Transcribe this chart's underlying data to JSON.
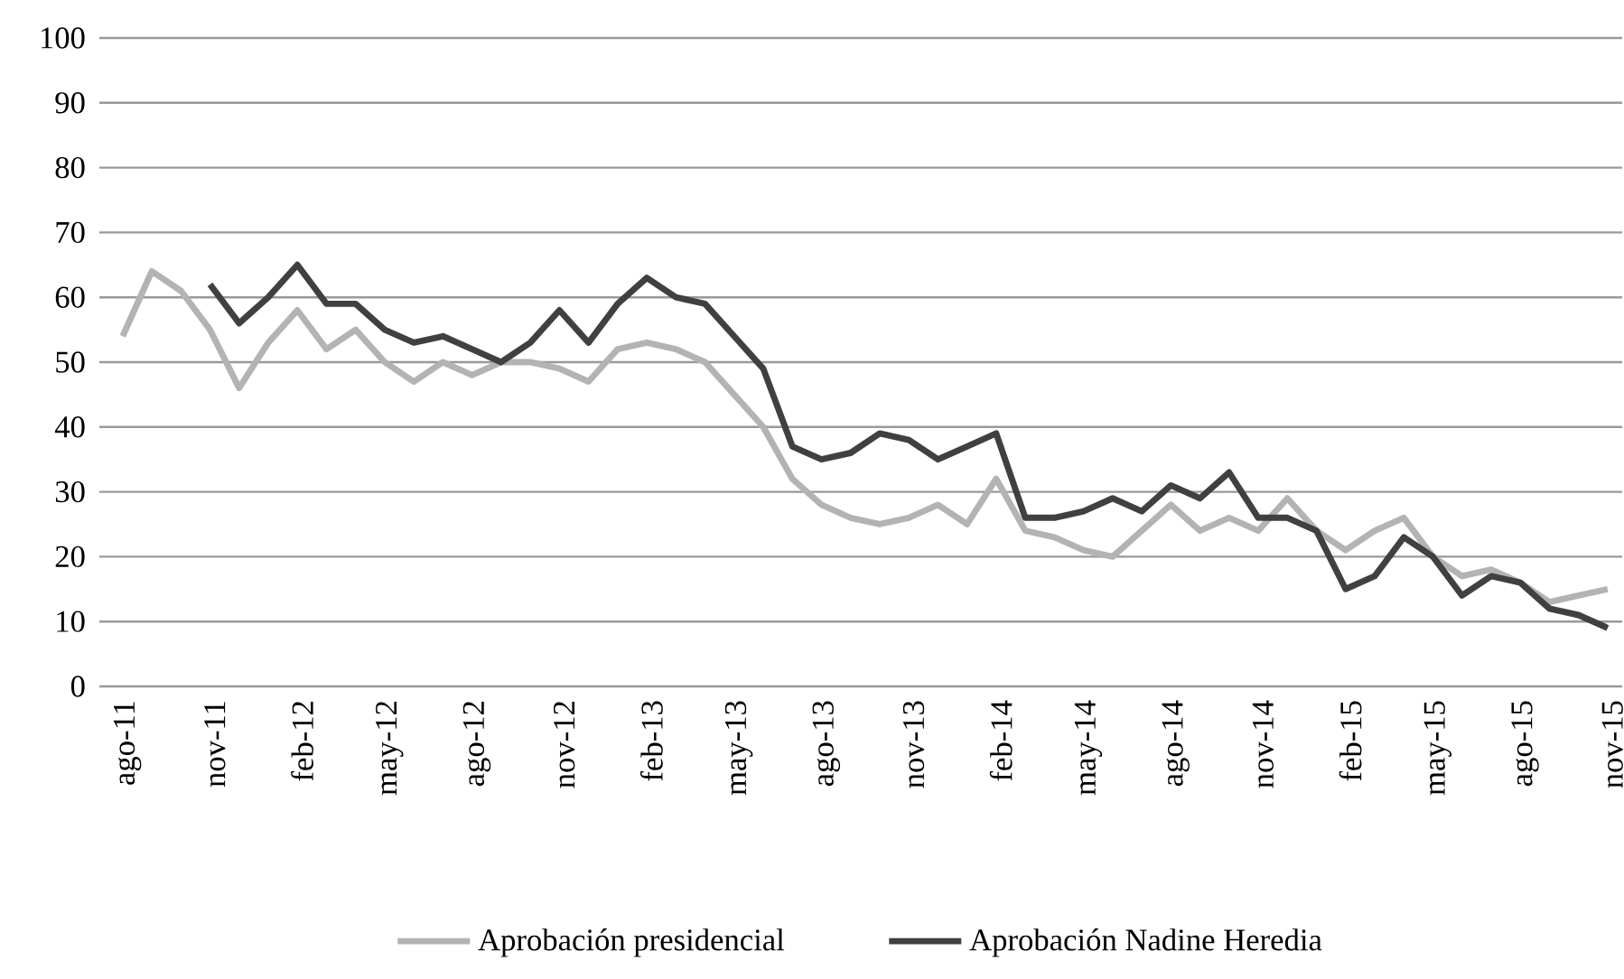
{
  "chart_data": {
    "type": "line",
    "categories": [
      "ago-11",
      null,
      null,
      "nov-11",
      null,
      null,
      "feb-12",
      null,
      null,
      "may-12",
      null,
      null,
      "ago-12",
      null,
      null,
      "nov-12",
      null,
      null,
      "feb-13",
      null,
      null,
      "may-13",
      null,
      null,
      "ago-13",
      null,
      null,
      "nov-13",
      null,
      null,
      "feb-14",
      null,
      null,
      "may-14",
      null,
      null,
      "ago-14",
      null,
      null,
      "nov-14",
      null,
      null,
      "feb-15",
      null,
      null,
      "may-15",
      null,
      null,
      "ago-15",
      null,
      null,
      "nov-15"
    ],
    "series": [
      {
        "name": "Aprobación presidencial",
        "color": "#b3b3b3",
        "values": [
          54,
          64,
          61,
          55,
          46,
          53,
          58,
          52,
          55,
          50,
          47,
          50,
          48,
          50,
          50,
          49,
          47,
          52,
          53,
          52,
          50,
          45,
          40,
          32,
          28,
          26,
          25,
          26,
          28,
          25,
          32,
          24,
          23,
          21,
          20,
          24,
          28,
          24,
          26,
          24,
          29,
          24,
          21,
          24,
          26,
          20,
          17,
          18,
          16,
          13,
          14,
          15
        ]
      },
      {
        "name": "Aprobación Nadine Heredia",
        "color": "#404040",
        "values": [
          null,
          null,
          null,
          62,
          56,
          60,
          65,
          59,
          59,
          55,
          53,
          54,
          52,
          50,
          53,
          58,
          53,
          59,
          63,
          60,
          59,
          54,
          49,
          37,
          35,
          36,
          39,
          38,
          35,
          37,
          39,
          26,
          26,
          27,
          29,
          27,
          31,
          29,
          33,
          26,
          26,
          24,
          15,
          17,
          23,
          20,
          14,
          17,
          16,
          12,
          11,
          9
        ]
      }
    ],
    "ylim": [
      0,
      100
    ],
    "yticks": [
      0,
      10,
      20,
      30,
      40,
      50,
      60,
      70,
      80,
      90,
      100
    ],
    "grid": "y",
    "legend": "bottom",
    "line_style": "solid",
    "marker": "none"
  }
}
